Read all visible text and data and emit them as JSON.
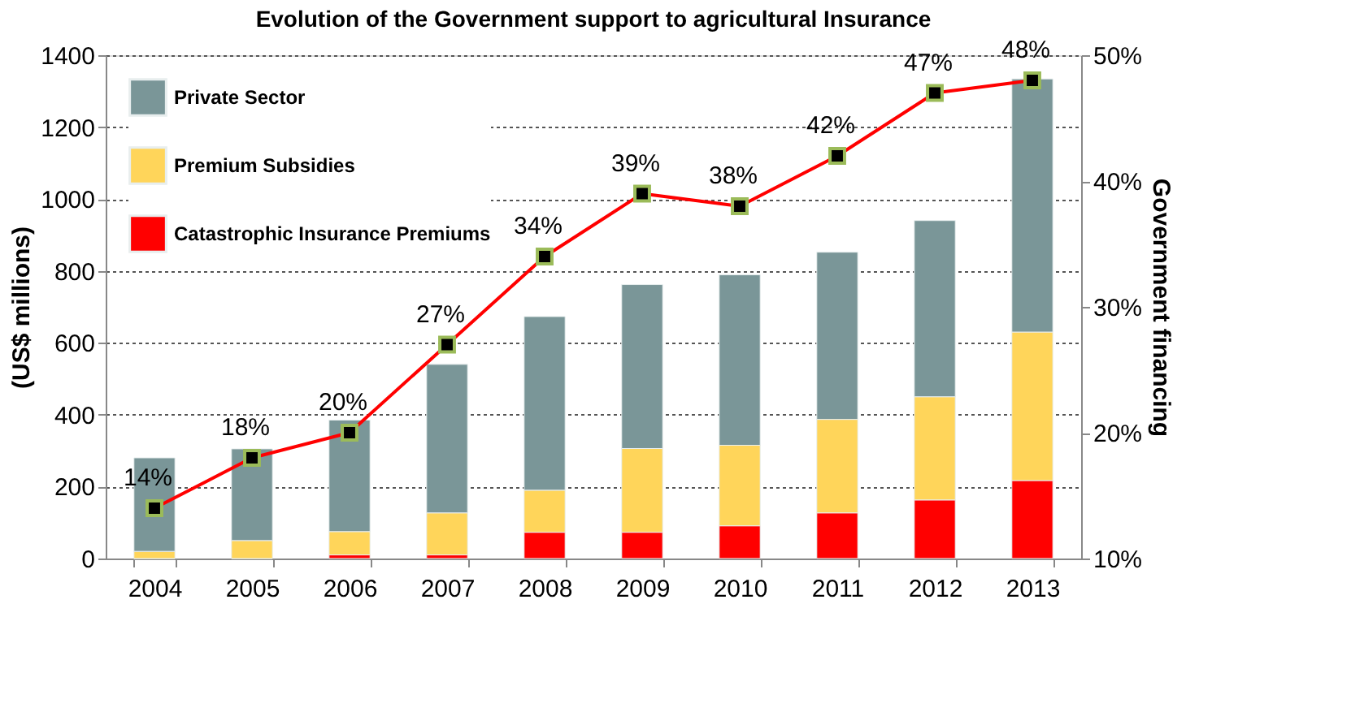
{
  "chart_data": {
    "type": "bar",
    "stacked": true,
    "title": "Evolution  of the Government support to  agricultural  Insurance",
    "ylabel": "(US$ millions)",
    "y2label": "Government  financing",
    "categories": [
      "2004",
      "2005",
      "2006",
      "2007",
      "2008",
      "2009",
      "2010",
      "2011",
      "2012",
      "2013"
    ],
    "ylim": [
      0,
      1400
    ],
    "yticks": [
      0,
      200,
      400,
      600,
      800,
      1000,
      1200,
      1400
    ],
    "y2lim": [
      10,
      50
    ],
    "y2ticks": [
      {
        "value": 10,
        "label": "10%"
      },
      {
        "value": 20,
        "label": "20%"
      },
      {
        "value": 30,
        "label": "30%"
      },
      {
        "value": 40,
        "label": "40%"
      },
      {
        "value": 50,
        "label": "50%"
      }
    ],
    "grid": "y",
    "legend": "top left",
    "series": [
      {
        "name": "Catastrophic Insurance Premiums",
        "color": "#ff0000",
        "values": [
          0,
          0,
          10,
          10,
          73,
          73,
          91,
          127,
          163,
          217
        ]
      },
      {
        "name": "Premium Subsidies",
        "color": "#ffd55a",
        "values": [
          20,
          50,
          65,
          117,
          117,
          233,
          224,
          260,
          287,
          413
        ]
      },
      {
        "name": "Private Sector",
        "color": "#7a9698",
        "values": [
          260,
          255,
          310,
          413,
          483,
          456,
          474,
          465,
          490,
          704
        ]
      },
      {
        "type": "line",
        "axis": "y2",
        "color": "#ff0000",
        "marker": "square",
        "values": [
          14,
          18,
          20,
          27,
          34,
          39,
          38,
          42,
          47,
          48
        ],
        "value_labels": [
          "14%",
          "18%",
          "20%",
          "27%",
          "34%",
          "39%",
          "38%",
          "42%",
          "47%",
          "48%"
        ]
      }
    ]
  }
}
